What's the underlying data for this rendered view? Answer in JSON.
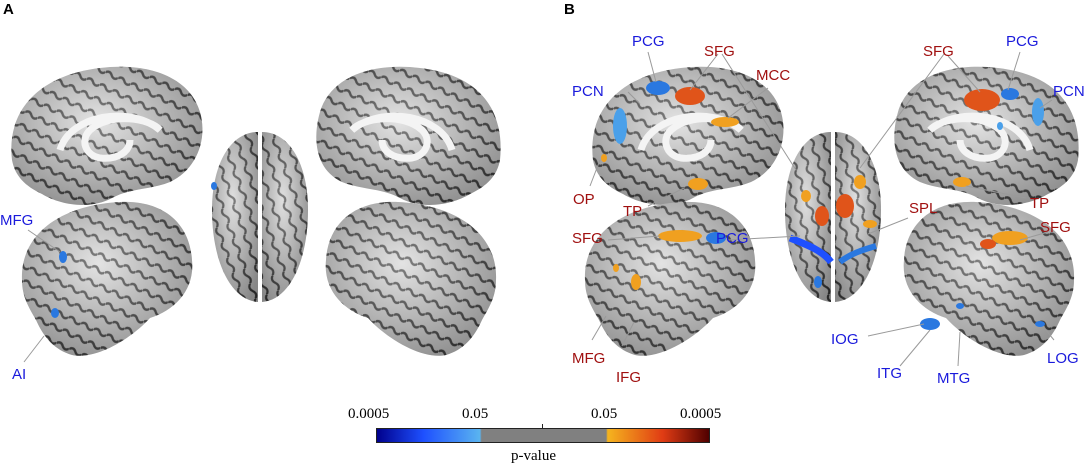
{
  "panels": [
    {
      "letter": "A"
    },
    {
      "letter": "B"
    }
  ],
  "colors": {
    "blue_region": "#2a78e0",
    "red_region": "#e0541a",
    "orange_region": "#f0a020",
    "label_blue": "#1a1adc",
    "label_red": "#a01010",
    "brain_base": "#8e8e8e",
    "leader_line": "#9a9a9a"
  },
  "labels_A": [
    {
      "text": "MFG",
      "color": "blue"
    },
    {
      "text": "AI",
      "color": "blue"
    }
  ],
  "labels_B": [
    {
      "text": "PCG",
      "color": "blue"
    },
    {
      "text": "SFG",
      "color": "red"
    },
    {
      "text": "MCC",
      "color": "red"
    },
    {
      "text": "PCN",
      "color": "blue"
    },
    {
      "text": "OP",
      "color": "red"
    },
    {
      "text": "TP",
      "color": "red"
    },
    {
      "text": "SFG",
      "color": "red"
    },
    {
      "text": "PCG",
      "color": "blue"
    },
    {
      "text": "PCN",
      "color": "blue"
    },
    {
      "text": "TP",
      "color": "red"
    },
    {
      "text": "SFG",
      "color": "red"
    },
    {
      "text": "PCG",
      "color": "blue"
    },
    {
      "text": "SPL",
      "color": "red"
    },
    {
      "text": "SFG",
      "color": "red"
    },
    {
      "text": "MFG",
      "color": "red"
    },
    {
      "text": "IFG",
      "color": "red"
    },
    {
      "text": "IOG",
      "color": "blue"
    },
    {
      "text": "ITG",
      "color": "blue"
    },
    {
      "text": "MTG",
      "color": "blue"
    },
    {
      "text": "LOG",
      "color": "blue"
    }
  ],
  "colorbar": {
    "tick_labels": [
      "0.0005",
      "0.05",
      "0.05",
      "0.0005"
    ],
    "title": "p-value",
    "stops": [
      "#00008c",
      "#1e50ff",
      "#5ab4f0",
      "#808080",
      "#808080",
      "#f5b41e",
      "#e03c14",
      "#500000"
    ]
  }
}
